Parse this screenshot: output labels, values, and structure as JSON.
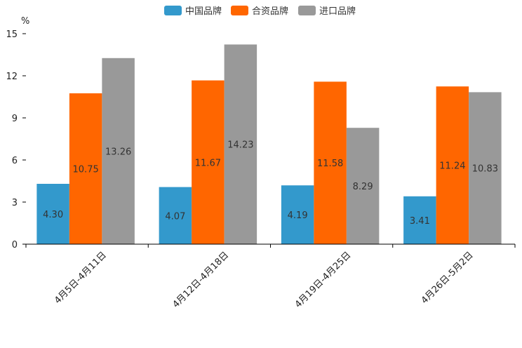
{
  "chart_data": {
    "type": "bar",
    "title": "",
    "ylabel": "%",
    "xlabel": "",
    "ylim": [
      0,
      15
    ],
    "yticks": [
      0,
      3,
      6,
      9,
      12,
      15
    ],
    "categories": [
      "4月5日-4月11日",
      "4月12日-4月18日",
      "4月19日-4月25日",
      "4月26日-5月2日"
    ],
    "series": [
      {
        "name": "中国品牌",
        "color": "#3399cc",
        "values": [
          4.3,
          4.07,
          4.19,
          3.41
        ],
        "labels": [
          "4.30",
          "4.07",
          "4.19",
          "3.41"
        ]
      },
      {
        "name": "合资品牌",
        "color": "#ff6600",
        "values": [
          10.75,
          11.67,
          11.58,
          11.24
        ],
        "labels": [
          "10.75",
          "11.67",
          "11.58",
          "11.24"
        ]
      },
      {
        "name": "进口品牌",
        "color": "#999999",
        "values": [
          13.26,
          14.23,
          8.29,
          10.83
        ],
        "labels": [
          "13.26",
          "14.23",
          "8.29",
          "10.83"
        ]
      }
    ],
    "legend": "top-center",
    "grid": false
  }
}
